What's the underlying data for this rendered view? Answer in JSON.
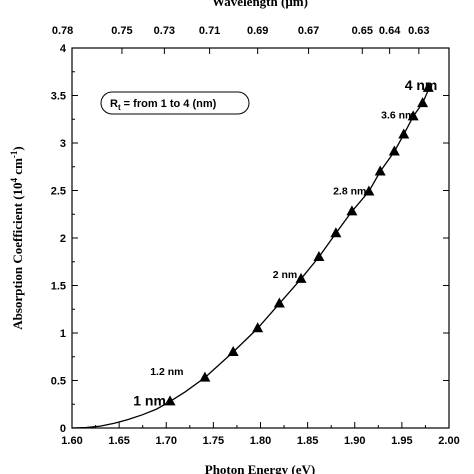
{
  "chart_data": {
    "type": "scatter",
    "xlabel": "Photon Energy (eV)",
    "ylabel": "Absorption Coefficient (10",
    "ylabel_sup1": "4",
    "ylabel_mid": " cm",
    "ylabel_sup2": "-1",
    "ylabel_end": ")",
    "x2label": "Wavelength (µm)",
    "xlim": [
      1.6,
      2.0
    ],
    "ylim": [
      0,
      4
    ],
    "x_ticks": [
      "1.60",
      "1.65",
      "1.70",
      "1.75",
      "1.80",
      "1.85",
      "1.90",
      "1.95",
      "2.00"
    ],
    "y_ticks": [
      "0",
      "0.5",
      "1",
      "1.5",
      "2",
      "2.5",
      "3",
      "3.5",
      "4"
    ],
    "top_ticks": [
      {
        "x": 1.59,
        "label": "0.78"
      },
      {
        "x": 1.653,
        "label": "0.75"
      },
      {
        "x": 1.698,
        "label": "0.73"
      },
      {
        "x": 1.746,
        "label": "0.71"
      },
      {
        "x": 1.797,
        "label": "0.69"
      },
      {
        "x": 1.851,
        "label": "0.67"
      },
      {
        "x": 1.908,
        "label": "0.65"
      },
      {
        "x": 1.937,
        "label": "0.64"
      },
      {
        "x": 1.968,
        "label": "0.63"
      }
    ],
    "legend_box": {
      "prefix": "R",
      "sub": "t",
      "text": " = from 1 to 4 (nm)"
    },
    "markers": {
      "x": [
        1.704,
        1.741,
        1.771,
        1.797,
        1.82,
        1.843,
        1.862,
        1.88,
        1.897,
        1.915,
        1.927,
        1.942,
        1.952,
        1.962,
        1.972,
        1.978
      ],
      "y": [
        0.28,
        0.53,
        0.8,
        1.05,
        1.31,
        1.57,
        1.8,
        2.05,
        2.28,
        2.49,
        2.7,
        2.91,
        3.09,
        3.28,
        3.42,
        3.58
      ]
    },
    "fit_curve": {
      "x": [
        1.6,
        1.615,
        1.63,
        1.645,
        1.66,
        1.675,
        1.69,
        1.704,
        1.72,
        1.741,
        1.771,
        1.797,
        1.82,
        1.843,
        1.862,
        1.88,
        1.897,
        1.915,
        1.927,
        1.942,
        1.952,
        1.962,
        1.972,
        1.98
      ],
      "y": [
        0,
        0.005,
        0.02,
        0.05,
        0.09,
        0.14,
        0.2,
        0.28,
        0.38,
        0.53,
        0.8,
        1.05,
        1.31,
        1.57,
        1.8,
        2.05,
        2.28,
        2.49,
        2.7,
        2.91,
        3.09,
        3.28,
        3.42,
        3.6
      ]
    },
    "annotations": [
      {
        "text": "1 nm",
        "x": 1.665,
        "y": 0.28,
        "size": "large"
      },
      {
        "text": "1.2 nm",
        "x": 1.683,
        "y": 0.6,
        "size": "small"
      },
      {
        "text": "2 nm",
        "x": 1.813,
        "y": 1.62,
        "size": "small"
      },
      {
        "text": "2.8 nm",
        "x": 1.877,
        "y": 2.5,
        "size": "small"
      },
      {
        "text": "3.6 nm",
        "x": 1.928,
        "y": 3.3,
        "size": "small"
      },
      {
        "text": "4 nm",
        "x": 1.953,
        "y": 3.6,
        "size": "large"
      }
    ],
    "grid": false,
    "legend_placement": "top-left"
  }
}
